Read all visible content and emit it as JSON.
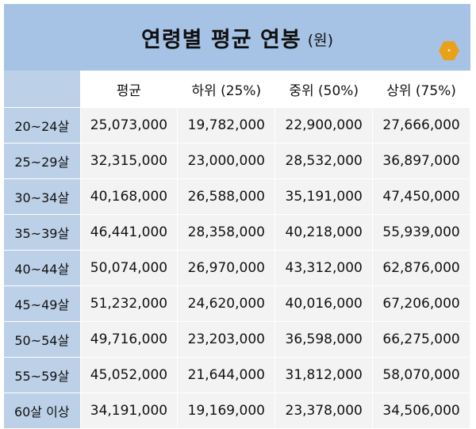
{
  "title": {
    "main": "연령별 평균 연봉",
    "unit": "(원)"
  },
  "badge": {
    "icon": "award-badge-icon",
    "color": "#e8a21a"
  },
  "colors": {
    "header": "#a6c3e6",
    "row_header": "#bcd0e8",
    "cell": "#f3f3f3"
  },
  "table": {
    "columns": [
      "",
      "평균",
      "하위 (25%)",
      "중위 (50%)",
      "상위 (75%)"
    ],
    "rows": [
      [
        "20~24살",
        "25,073,000",
        "19,782,000",
        "22,900,000",
        "27,666,000"
      ],
      [
        "25~29살",
        "32,315,000",
        "23,000,000",
        "28,532,000",
        "36,897,000"
      ],
      [
        "30~34살",
        "40,168,000",
        "26,588,000",
        "35,191,000",
        "47,450,000"
      ],
      [
        "35~39살",
        "46,441,000",
        "28,358,000",
        "40,218,000",
        "55,939,000"
      ],
      [
        "40~44살",
        "50,074,000",
        "26,970,000",
        "43,312,000",
        "62,876,000"
      ],
      [
        "45~49살",
        "51,232,000",
        "24,620,000",
        "40,016,000",
        "67,206,000"
      ],
      [
        "50~54살",
        "49,716,000",
        "23,203,000",
        "36,598,000",
        "66,275,000"
      ],
      [
        "55~59살",
        "45,052,000",
        "21,644,000",
        "31,812,000",
        "58,070,000"
      ],
      [
        "60살 이상",
        "34,191,000",
        "19,169,000",
        "23,378,000",
        "34,506,000"
      ]
    ]
  }
}
